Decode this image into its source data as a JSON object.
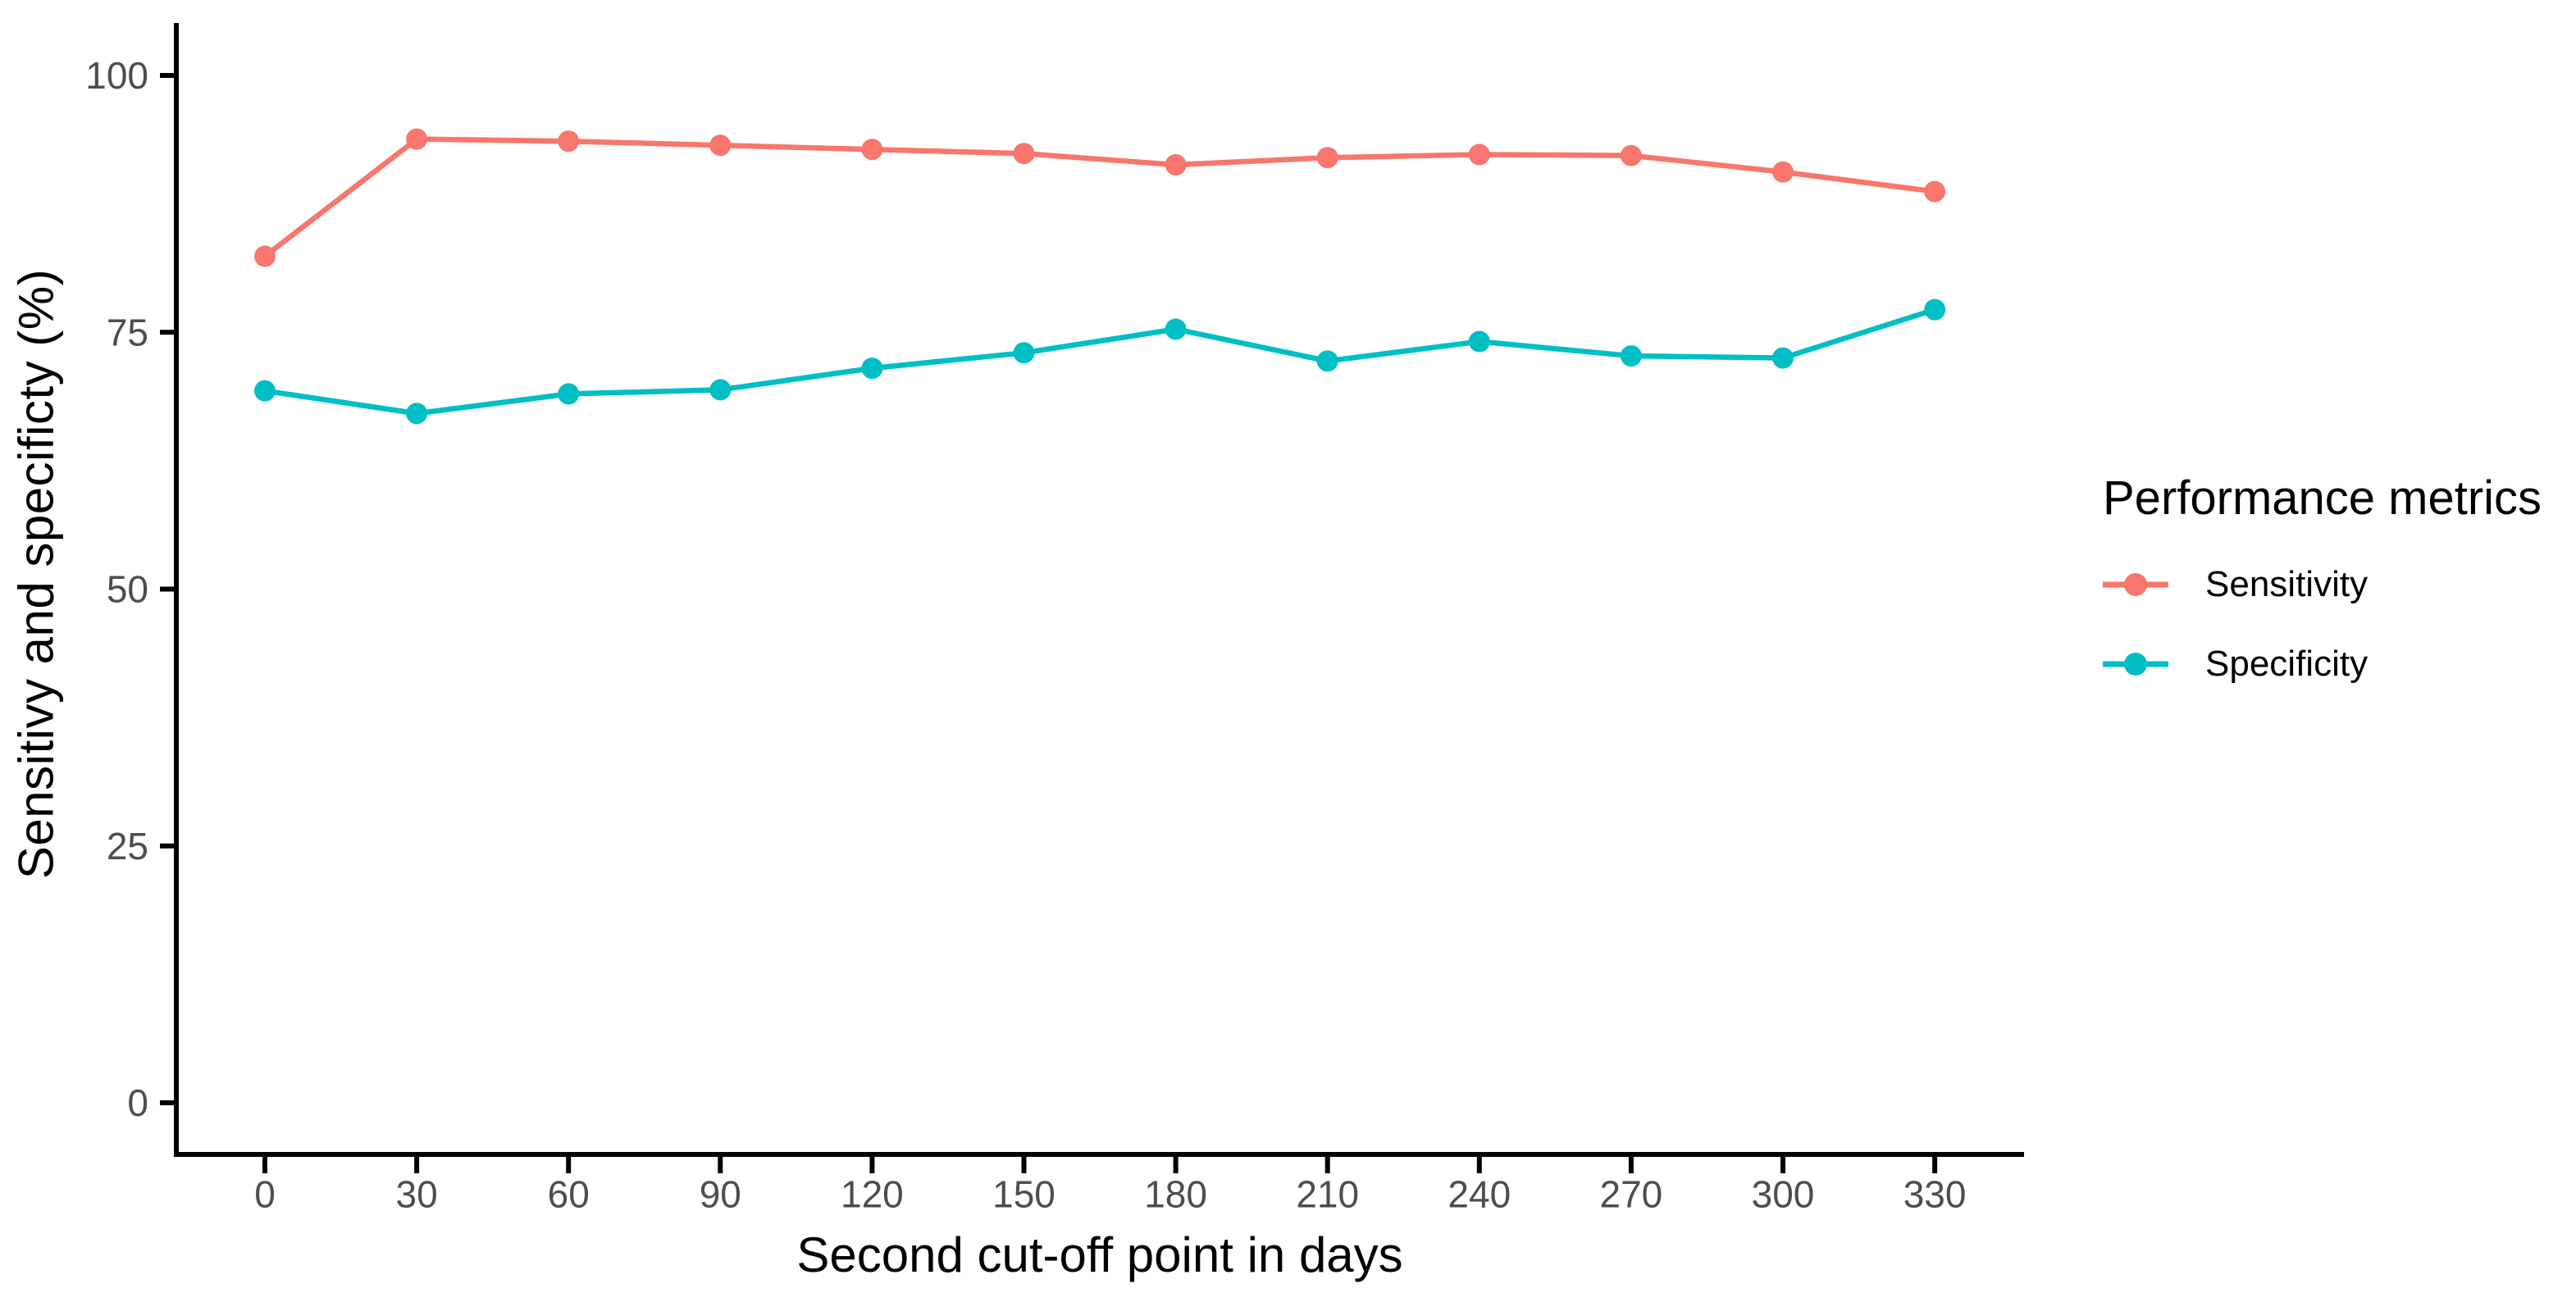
{
  "chart_data": {
    "type": "line",
    "title": "",
    "xlabel": "Second cut-off point in days",
    "ylabel": "Sensitivy and specificty (%)",
    "x": [
      0,
      30,
      60,
      90,
      120,
      150,
      180,
      210,
      240,
      270,
      300,
      330
    ],
    "y_ticks": [
      0,
      25,
      50,
      75,
      100
    ],
    "ylim": [
      0,
      105
    ],
    "grid": false,
    "legend_title": "Performance metrics",
    "legend_position": "right",
    "series": [
      {
        "name": "Sensitivity",
        "color": "#F8766D",
        "values": [
          82.4,
          93.8,
          93.6,
          93.2,
          92.8,
          92.4,
          91.3,
          92.0,
          92.3,
          92.2,
          90.6,
          88.7
        ]
      },
      {
        "name": "Specificity",
        "color": "#00BFC4",
        "values": [
          69.3,
          67.1,
          69.0,
          69.4,
          71.5,
          73.0,
          75.3,
          72.2,
          74.1,
          72.7,
          72.5,
          77.2
        ]
      }
    ]
  },
  "style": {
    "axis_line_color": "#000000",
    "tick_label_color": "#4D4D4D",
    "background_color": "#FFFFFF"
  }
}
